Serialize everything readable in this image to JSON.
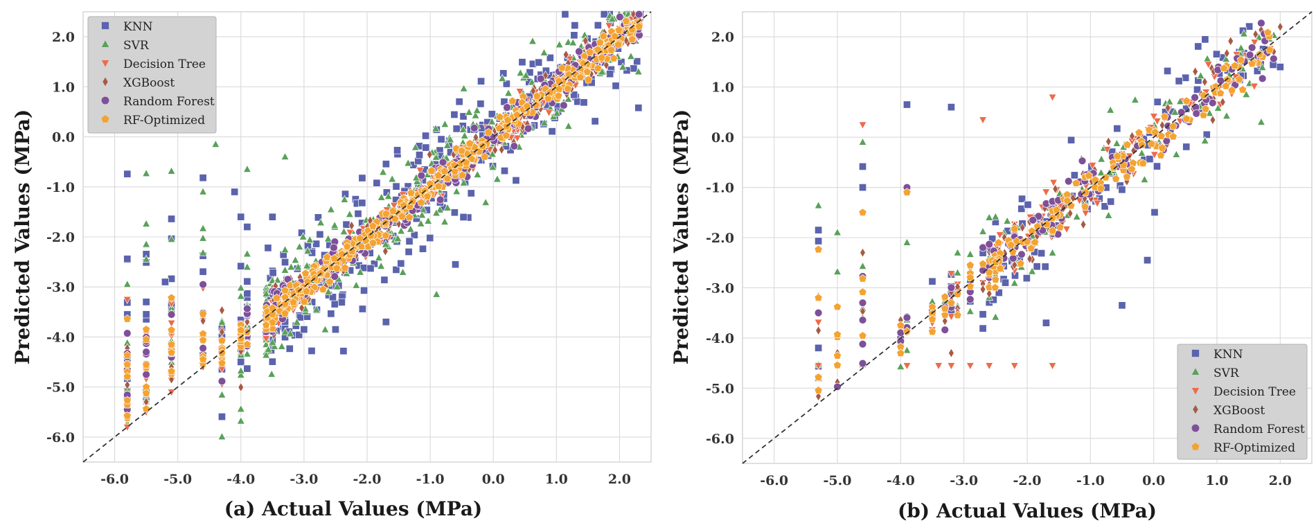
{
  "chart_data": [
    {
      "type": "scatter",
      "panel": "a",
      "xlabel": "(a) Actual Values (MPa)",
      "ylabel": "Predicted Values (MPa)",
      "xlim": [
        -6.5,
        2.5
      ],
      "ylim": [
        -6.5,
        2.5
      ],
      "xticks": [
        "-6.0",
        "-5.0",
        "-4.0",
        "-3.0",
        "-2.0",
        "-1.0",
        "0.0",
        "1.0",
        "2.0"
      ],
      "yticks": [
        "-6.0",
        "-5.0",
        "-4.0",
        "-3.0",
        "-2.0",
        "-1.0",
        "0.0",
        "1.0",
        "2.0"
      ],
      "reference_line": "y = x",
      "legend_position": "top-left",
      "grid": true,
      "series": [
        {
          "name": "KNN",
          "marker": "square",
          "color": "#5b63ad",
          "scatter": 0.55,
          "n": 380,
          "seed": 11,
          "points": [
            [
              -5.8,
              -3.55
            ],
            [
              -5.5,
              -3.3
            ],
            [
              -5.2,
              -2.9
            ],
            [
              2.3,
              0.58
            ],
            [
              -4.1,
              -1.1
            ],
            [
              -1.7,
              -3.7
            ],
            [
              -2.5,
              -3.85
            ],
            [
              -0.6,
              -2.55
            ],
            [
              -3.0,
              -3.85
            ],
            [
              -4.0,
              -1.6
            ]
          ]
        },
        {
          "name": "SVR",
          "marker": "triangle-up",
          "color": "#5aa05a",
          "scatter": 0.5,
          "n": 380,
          "seed": 23,
          "points": [
            [
              -5.8,
              -2.95
            ],
            [
              -5.5,
              -2.15
            ],
            [
              -5.5,
              -2.45
            ],
            [
              -5.1,
              -2.05
            ],
            [
              -4.4,
              -0.15
            ],
            [
              -3.9,
              -0.65
            ],
            [
              -4.6,
              -1.1
            ],
            [
              -0.9,
              -3.15
            ],
            [
              2.3,
              1.3
            ],
            [
              -3.3,
              -0.4
            ]
          ]
        },
        {
          "name": "Decision Tree",
          "marker": "triangle-down",
          "color": "#ec6b4a",
          "scatter": 0.16,
          "n": 260,
          "seed": 37,
          "points": [
            [
              -5.8,
              -5.8
            ],
            [
              -5.5,
              -5.5
            ],
            [
              -5.1,
              -5.1
            ],
            [
              -4.6,
              -4.6
            ],
            [
              2.2,
              2.35
            ],
            [
              2.3,
              2.4
            ]
          ]
        },
        {
          "name": "XGBoost",
          "marker": "diamond",
          "color": "#a65a45",
          "scatter": 0.2,
          "n": 260,
          "seed": 41,
          "points": [
            [
              -5.8,
              -5.25
            ],
            [
              -5.5,
              -5.3
            ],
            [
              -5.1,
              -4.6
            ],
            [
              -4.3,
              -3.9
            ],
            [
              -4.0,
              -4.05
            ],
            [
              2.2,
              2.25
            ]
          ]
        },
        {
          "name": "Random Forest",
          "marker": "circle",
          "color": "#7e5099",
          "scatter": 0.18,
          "n": 260,
          "seed": 53,
          "points": [
            [
              -5.8,
              -4.65
            ],
            [
              -5.5,
              -4.3
            ],
            [
              -5.1,
              -4.25
            ],
            [
              -5.5,
              -4.75
            ],
            [
              2.3,
              2.15
            ]
          ]
        },
        {
          "name": "RF-Optimized",
          "marker": "pentagon",
          "color": "#f4a331",
          "scatter": 0.13,
          "n": 420,
          "seed": 67,
          "points": [
            [
              -5.8,
              -4.55
            ],
            [
              -5.5,
              -4.05
            ],
            [
              -5.5,
              -3.85
            ],
            [
              -5.1,
              -4.15
            ],
            [
              -4.6,
              -4.45
            ],
            [
              2.2,
              1.95
            ]
          ]
        }
      ]
    },
    {
      "type": "scatter",
      "panel": "b",
      "xlabel": "(b) Actual Values (MPa)",
      "ylabel": "Predicted Values (MPa)",
      "xlim": [
        -6.5,
        2.5
      ],
      "ylim": [
        -6.5,
        2.5
      ],
      "xticks": [
        "-6.0",
        "-5.0",
        "-4.0",
        "-3.0",
        "-2.0",
        "-1.0",
        "0.0",
        "1.0",
        "2.0"
      ],
      "yticks": [
        "-6.0",
        "-5.0",
        "-4.0",
        "-3.0",
        "-2.0",
        "-1.0",
        "0.0",
        "1.0",
        "2.0"
      ],
      "reference_line": "y = x",
      "legend_position": "bottom-right",
      "grid": true,
      "series": [
        {
          "name": "KNN",
          "marker": "square",
          "color": "#5b63ad",
          "scatter": 0.5,
          "n": 120,
          "seed": 71,
          "points": [
            [
              -5.3,
              -1.85
            ],
            [
              -4.6,
              -1.0
            ],
            [
              -3.9,
              0.65
            ],
            [
              -3.2,
              0.6
            ],
            [
              -0.5,
              -3.35
            ],
            [
              -1.7,
              -3.7
            ],
            [
              2.0,
              1.4
            ],
            [
              -0.1,
              -2.45
            ]
          ]
        },
        {
          "name": "SVR",
          "marker": "triangle-up",
          "color": "#5aa05a",
          "scatter": 0.4,
          "n": 120,
          "seed": 79,
          "points": [
            [
              -4.6,
              -0.1
            ],
            [
              -5.0,
              -1.9
            ],
            [
              -3.9,
              -2.1
            ],
            [
              1.7,
              0.3
            ]
          ]
        },
        {
          "name": "Decision Tree",
          "marker": "triangle-down",
          "color": "#ec6b4a",
          "scatter": 0.3,
          "n": 90,
          "seed": 83,
          "points": [
            [
              -5.3,
              -4.55
            ],
            [
              -4.6,
              0.25
            ],
            [
              -3.9,
              -4.55
            ],
            [
              -3.4,
              -4.55
            ],
            [
              -3.2,
              -4.55
            ],
            [
              -2.9,
              -4.55
            ],
            [
              -2.6,
              -4.55
            ],
            [
              -2.2,
              -4.55
            ],
            [
              -1.6,
              -4.55
            ],
            [
              -2.7,
              0.35
            ],
            [
              -1.6,
              0.8
            ]
          ]
        },
        {
          "name": "XGBoost",
          "marker": "diamond",
          "color": "#a65a45",
          "scatter": 0.28,
          "n": 100,
          "seed": 89,
          "points": [
            [
              -5.3,
              -3.85
            ],
            [
              -4.6,
              -2.3
            ],
            [
              -3.2,
              -4.3
            ],
            [
              2.0,
              2.2
            ]
          ]
        },
        {
          "name": "Random Forest",
          "marker": "circle",
          "color": "#7e5099",
          "scatter": 0.24,
          "n": 110,
          "seed": 97,
          "points": [
            [
              -5.3,
              -3.5
            ],
            [
              -4.6,
              -3.3
            ],
            [
              -3.9,
              -1.0
            ]
          ]
        },
        {
          "name": "RF-Optimized",
          "marker": "pentagon",
          "color": "#f4a331",
          "scatter": 0.2,
          "n": 150,
          "seed": 101,
          "points": [
            [
              -5.3,
              -3.2
            ],
            [
              -4.6,
              -1.5
            ],
            [
              -3.9,
              -1.1
            ],
            [
              -4.0,
              -3.75
            ]
          ]
        }
      ]
    }
  ]
}
